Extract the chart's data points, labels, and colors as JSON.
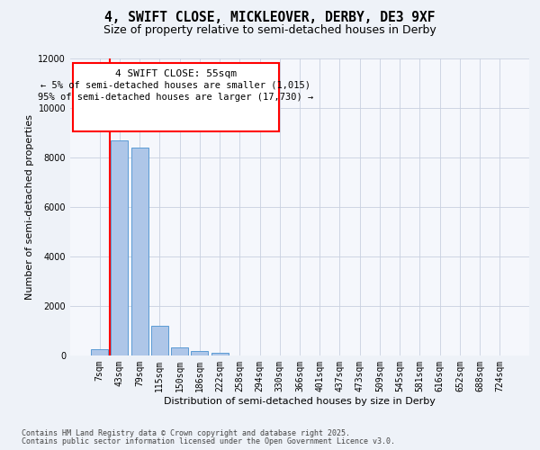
{
  "title1": "4, SWIFT CLOSE, MICKLEOVER, DERBY, DE3 9XF",
  "title2": "Size of property relative to semi-detached houses in Derby",
  "xlabel": "Distribution of semi-detached houses by size in Derby",
  "ylabel": "Number of semi-detached properties",
  "categories": [
    "7sqm",
    "43sqm",
    "79sqm",
    "115sqm",
    "150sqm",
    "186sqm",
    "222sqm",
    "258sqm",
    "294sqm",
    "330sqm",
    "366sqm",
    "401sqm",
    "437sqm",
    "473sqm",
    "509sqm",
    "545sqm",
    "581sqm",
    "616sqm",
    "652sqm",
    "688sqm",
    "724sqm"
  ],
  "values": [
    250,
    8680,
    8400,
    1200,
    330,
    180,
    100,
    0,
    0,
    0,
    0,
    0,
    0,
    0,
    0,
    0,
    0,
    0,
    0,
    0,
    0
  ],
  "bar_color": "#aec6e8",
  "bar_edge_color": "#5b9bd5",
  "vline_x": 0.5,
  "vline_color": "red",
  "ylim": [
    0,
    12000
  ],
  "yticks": [
    0,
    2000,
    4000,
    6000,
    8000,
    10000,
    12000
  ],
  "annotation_title": "4 SWIFT CLOSE: 55sqm",
  "annotation_line1": "← 5% of semi-detached houses are smaller (1,015)",
  "annotation_line2": "95% of semi-detached houses are larger (17,730) →",
  "annotation_box_color": "red",
  "footer1": "Contains HM Land Registry data © Crown copyright and database right 2025.",
  "footer2": "Contains public sector information licensed under the Open Government Licence v3.0.",
  "bg_color": "#eef2f8",
  "plot_bg_color": "#f5f7fc",
  "title1_fontsize": 10.5,
  "title2_fontsize": 9,
  "axis_fontsize": 8,
  "tick_fontsize": 7,
  "footer_fontsize": 6
}
